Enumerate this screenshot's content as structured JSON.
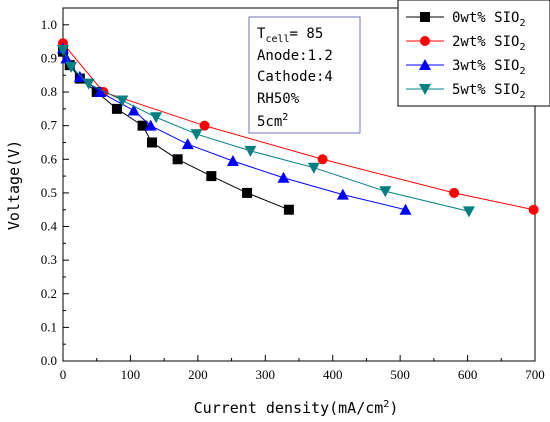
{
  "chart_data": {
    "type": "line",
    "xlabel": "Current density(mA/cm",
    "xlabel_sup": "2",
    "xlabel_end": ")",
    "ylabel": "Voltage(V)",
    "xlim": [
      0,
      700
    ],
    "ylim": [
      0.0,
      1.05
    ],
    "xticks": [
      0,
      100,
      200,
      300,
      400,
      500,
      600,
      700
    ],
    "yticks": [
      0.0,
      0.1,
      0.2,
      0.3,
      0.4,
      0.5,
      0.6,
      0.7,
      0.8,
      0.9,
      1.0
    ],
    "grid": false,
    "legend_position": "top-right",
    "series": [
      {
        "name": "0wt% SIO",
        "name_sub": "2",
        "color": "#000000",
        "marker": "square",
        "x": [
          0,
          10,
          25,
          50,
          80,
          118,
          132,
          170,
          220,
          273,
          335
        ],
        "y": [
          0.92,
          0.88,
          0.84,
          0.8,
          0.75,
          0.7,
          0.65,
          0.6,
          0.55,
          0.5,
          0.45
        ]
      },
      {
        "name": "2wt% SIO",
        "name_sub": "2",
        "color": "#ff0000",
        "marker": "circle",
        "x": [
          0,
          60,
          210,
          385,
          580,
          698
        ],
        "y": [
          0.945,
          0.8,
          0.7,
          0.6,
          0.5,
          0.45
        ]
      },
      {
        "name": "3wt% SIO",
        "name_sub": "2",
        "color": "#0000ff",
        "marker": "triangle-up",
        "x": [
          0,
          5,
          25,
          55,
          105,
          130,
          185,
          252,
          327,
          415,
          508
        ],
        "y": [
          0.93,
          0.9,
          0.845,
          0.8,
          0.745,
          0.7,
          0.645,
          0.595,
          0.545,
          0.495,
          0.45
        ]
      },
      {
        "name": "5wt% SIO",
        "name_sub": "2",
        "color": "#008080",
        "marker": "triangle-down",
        "x": [
          0,
          12,
          38,
          88,
          138,
          198,
          278,
          372,
          478,
          602
        ],
        "y": [
          0.925,
          0.875,
          0.825,
          0.775,
          0.725,
          0.675,
          0.625,
          0.575,
          0.505,
          0.445
        ]
      }
    ],
    "annotation": {
      "line1_main": "T",
      "line1_sub": "cell",
      "line1_rest": "= 85",
      "line2": "Anode:1.2",
      "line3": "Cathode:4",
      "line4": "RH50%",
      "line5_main": "5cm",
      "line5_sup": "2"
    }
  }
}
